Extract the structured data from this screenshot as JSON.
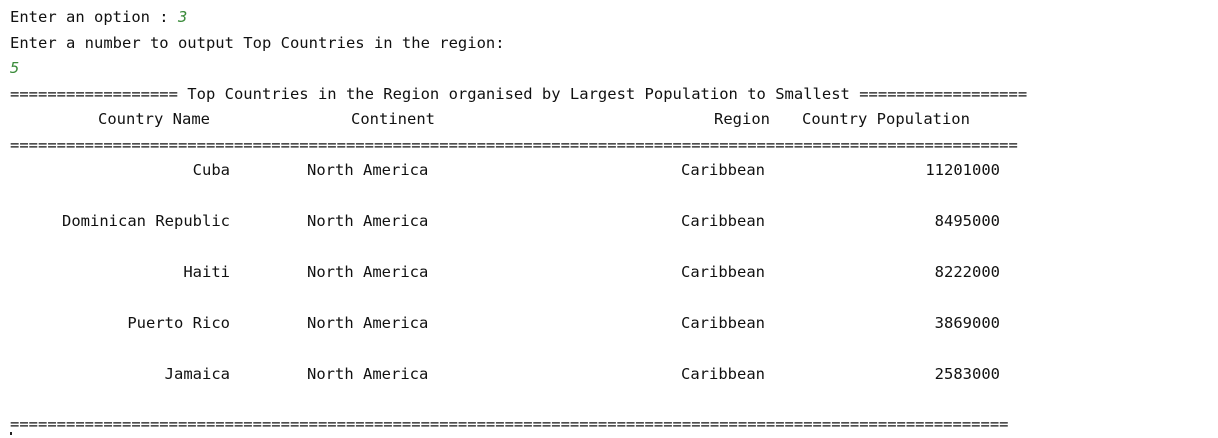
{
  "prompt": {
    "option_label": "Enter an option : ",
    "option_value": "3",
    "number_label": "Enter a number to output Top Countries in the region:",
    "number_value": "5"
  },
  "report": {
    "title_line": "================== Top Countries in the Region organised by Largest Population to Smallest ==================",
    "headers": {
      "country": "Country Name",
      "continent": "Continent",
      "region": "Region",
      "population": "Country Population"
    },
    "divider": "============================================================================================================",
    "footer_divider": "===========================================================================================================",
    "rows": [
      {
        "country": "Cuba",
        "continent": "North America",
        "region": "Caribbean",
        "population": "11201000"
      },
      {
        "country": "Dominican Republic",
        "continent": "North America",
        "region": "Caribbean",
        "population": "8495000"
      },
      {
        "country": "Haiti",
        "continent": "North America",
        "region": "Caribbean",
        "population": "8222000"
      },
      {
        "country": "Puerto Rico",
        "continent": "North America",
        "region": "Caribbean",
        "population": "3869000"
      },
      {
        "country": "Jamaica",
        "continent": "North America",
        "region": "Caribbean",
        "population": "2583000"
      }
    ]
  }
}
